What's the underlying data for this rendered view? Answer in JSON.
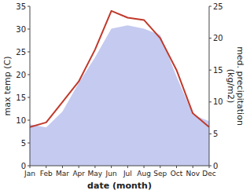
{
  "chart_data": {
    "type": "line",
    "xlabel": "date (month)",
    "ylabel": "max temp (C)",
    "y2label": "med. precipitation\n(kg/m2)",
    "categories": [
      "Jan",
      "Feb",
      "Mar",
      "Apr",
      "May",
      "Jun",
      "Jul",
      "Aug",
      "Sep",
      "Oct",
      "Nov",
      "Dec"
    ],
    "series": [
      {
        "type": "area",
        "axis": "y2",
        "color": "#c5caf0",
        "values": [
          6.5,
          6.0,
          8.5,
          13.0,
          17.0,
          21.5,
          22.0,
          21.5,
          20.5,
          14.0,
          8.0,
          7.0
        ]
      },
      {
        "type": "line",
        "color": "#c0392b",
        "values": [
          8.5,
          9.5,
          14.0,
          18.5,
          25.5,
          34.0,
          32.5,
          32.0,
          28.0,
          21.0,
          11.5,
          8.5
        ]
      }
    ],
    "ylim": [
      0,
      35
    ],
    "yticks": [
      0,
      5,
      10,
      15,
      20,
      25,
      30,
      35
    ],
    "y2lim": [
      0,
      25
    ],
    "y2ticks": [
      0,
      5,
      10,
      15,
      20,
      25
    ],
    "grid": false
  }
}
